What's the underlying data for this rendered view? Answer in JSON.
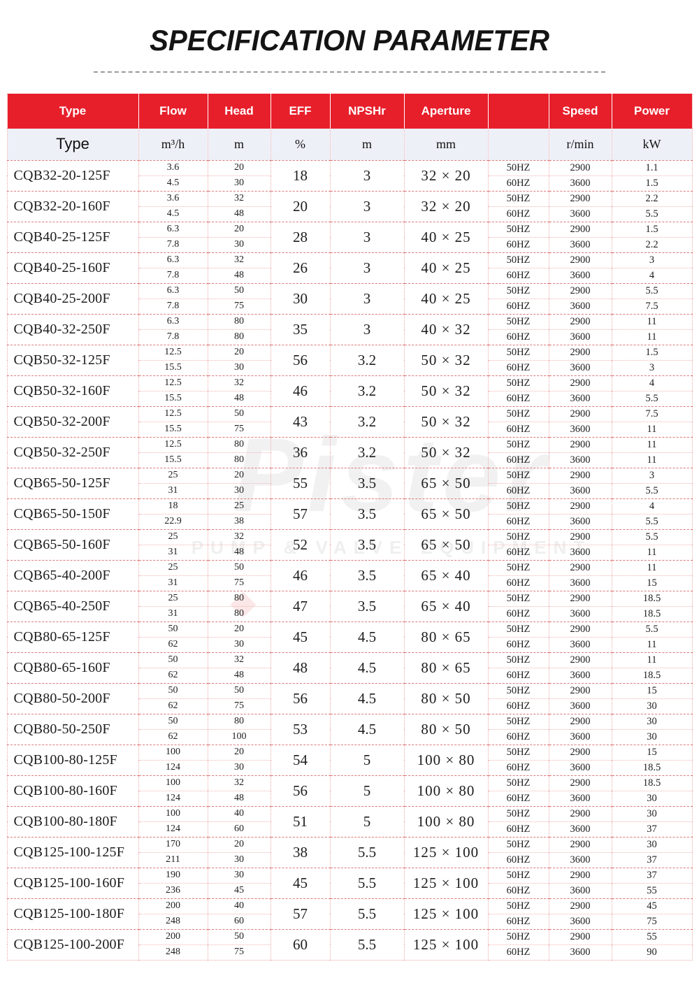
{
  "title": "SPECIFICATION PARAMETER",
  "watermark": {
    "brand": "Pister",
    "subtitle": "PUMP & VALVE EQUIPMENT"
  },
  "colors": {
    "header_red": "#e71f2b",
    "units_row_bg": "#eef0f8",
    "grid_strong": "#dd7a7a",
    "grid_light": "#efaaaa"
  },
  "table": {
    "header": {
      "type": "Type",
      "flow": "Flow",
      "head": "Head",
      "eff": "EFF",
      "npshr": "NPSHr",
      "aperture": "Aperture",
      "hz": "",
      "speed": "Speed",
      "power": "Power"
    },
    "units": {
      "type": "Type",
      "flow": "m³/h",
      "head": "m",
      "eff": "%",
      "npshr": "m",
      "aperture": "mm",
      "hz": "",
      "speed": "r/min",
      "power": "kW"
    },
    "hz_labels": [
      "50HZ",
      "60HZ"
    ],
    "speeds": [
      "2900",
      "3600"
    ],
    "rows": [
      {
        "type": "CQB32-20-125F",
        "flow": [
          "3.6",
          "4.5"
        ],
        "head": [
          "20",
          "30"
        ],
        "eff": "18",
        "npshr": "3",
        "aperture": "32 × 20",
        "power": [
          "1.1",
          "1.5"
        ]
      },
      {
        "type": "CQB32-20-160F",
        "flow": [
          "3.6",
          "4.5"
        ],
        "head": [
          "32",
          "48"
        ],
        "eff": "20",
        "npshr": "3",
        "aperture": "32 × 20",
        "power": [
          "2.2",
          "5.5"
        ]
      },
      {
        "type": "CQB40-25-125F",
        "flow": [
          "6.3",
          "7.8"
        ],
        "head": [
          "20",
          "30"
        ],
        "eff": "28",
        "npshr": "3",
        "aperture": "40 × 25",
        "power": [
          "1.5",
          "2.2"
        ]
      },
      {
        "type": "CQB40-25-160F",
        "flow": [
          "6.3",
          "7.8"
        ],
        "head": [
          "32",
          "48"
        ],
        "eff": "26",
        "npshr": "3",
        "aperture": "40 × 25",
        "power": [
          "3",
          "4"
        ]
      },
      {
        "type": "CQB40-25-200F",
        "flow": [
          "6.3",
          "7.8"
        ],
        "head": [
          "50",
          "75"
        ],
        "eff": "30",
        "npshr": "3",
        "aperture": "40 × 25",
        "power": [
          "5.5",
          "7.5"
        ]
      },
      {
        "type": "CQB40-32-250F",
        "flow": [
          "6.3",
          "7.8"
        ],
        "head": [
          "80",
          "80"
        ],
        "eff": "35",
        "npshr": "3",
        "aperture": "40 × 32",
        "power": [
          "11",
          "11"
        ]
      },
      {
        "type": "CQB50-32-125F",
        "flow": [
          "12.5",
          "15.5"
        ],
        "head": [
          "20",
          "30"
        ],
        "eff": "56",
        "npshr": "3.2",
        "aperture": "50 × 32",
        "power": [
          "1.5",
          "3"
        ]
      },
      {
        "type": "CQB50-32-160F",
        "flow": [
          "12.5",
          "15.5"
        ],
        "head": [
          "32",
          "48"
        ],
        "eff": "46",
        "npshr": "3.2",
        "aperture": "50 × 32",
        "power": [
          "4",
          "5.5"
        ]
      },
      {
        "type": "CQB50-32-200F",
        "flow": [
          "12.5",
          "15.5"
        ],
        "head": [
          "50",
          "75"
        ],
        "eff": "43",
        "npshr": "3.2",
        "aperture": "50 × 32",
        "power": [
          "7.5",
          "11"
        ]
      },
      {
        "type": "CQB50-32-250F",
        "flow": [
          "12.5",
          "15.5"
        ],
        "head": [
          "80",
          "80"
        ],
        "eff": "36",
        "npshr": "3.2",
        "aperture": "50 × 32",
        "power": [
          "11",
          "11"
        ]
      },
      {
        "type": "CQB65-50-125F",
        "flow": [
          "25",
          "31"
        ],
        "head": [
          "20",
          "30"
        ],
        "eff": "55",
        "npshr": "3.5",
        "aperture": "65 × 50",
        "power": [
          "3",
          "5.5"
        ]
      },
      {
        "type": "CQB65-50-150F",
        "flow": [
          "18",
          "22.9"
        ],
        "head": [
          "25",
          "38"
        ],
        "eff": "57",
        "npshr": "3.5",
        "aperture": "65 × 50",
        "power": [
          "4",
          "5.5"
        ]
      },
      {
        "type": "CQB65-50-160F",
        "flow": [
          "25",
          "31"
        ],
        "head": [
          "32",
          "48"
        ],
        "eff": "52",
        "npshr": "3.5",
        "aperture": "65 × 50",
        "power": [
          "5.5",
          "11"
        ]
      },
      {
        "type": "CQB65-40-200F",
        "flow": [
          "25",
          "31"
        ],
        "head": [
          "50",
          "75"
        ],
        "eff": "46",
        "npshr": "3.5",
        "aperture": "65 × 40",
        "power": [
          "11",
          "15"
        ]
      },
      {
        "type": "CQB65-40-250F",
        "flow": [
          "25",
          "31"
        ],
        "head": [
          "80",
          "80"
        ],
        "eff": "47",
        "npshr": "3.5",
        "aperture": "65 × 40",
        "power": [
          "18.5",
          "18.5"
        ]
      },
      {
        "type": "CQB80-65-125F",
        "flow": [
          "50",
          "62"
        ],
        "head": [
          "20",
          "30"
        ],
        "eff": "45",
        "npshr": "4.5",
        "aperture": "80 × 65",
        "power": [
          "5.5",
          "11"
        ]
      },
      {
        "type": "CQB80-65-160F",
        "flow": [
          "50",
          "62"
        ],
        "head": [
          "32",
          "48"
        ],
        "eff": "48",
        "npshr": "4.5",
        "aperture": "80 × 65",
        "power": [
          "11",
          "18.5"
        ]
      },
      {
        "type": "CQB80-50-200F",
        "flow": [
          "50",
          "62"
        ],
        "head": [
          "50",
          "75"
        ],
        "eff": "56",
        "npshr": "4.5",
        "aperture": "80 × 50",
        "power": [
          "15",
          "30"
        ]
      },
      {
        "type": "CQB80-50-250F",
        "flow": [
          "50",
          "62"
        ],
        "head": [
          "80",
          "100"
        ],
        "eff": "53",
        "npshr": "4.5",
        "aperture": "80 × 50",
        "power": [
          "30",
          "30"
        ]
      },
      {
        "type": "CQB100-80-125F",
        "flow": [
          "100",
          "124"
        ],
        "head": [
          "20",
          "30"
        ],
        "eff": "54",
        "npshr": "5",
        "aperture": "100 × 80",
        "power": [
          "15",
          "18.5"
        ]
      },
      {
        "type": "CQB100-80-160F",
        "flow": [
          "100",
          "124"
        ],
        "head": [
          "32",
          "48"
        ],
        "eff": "56",
        "npshr": "5",
        "aperture": "100 × 80",
        "power": [
          "18.5",
          "30"
        ]
      },
      {
        "type": "CQB100-80-180F",
        "flow": [
          "100",
          "124"
        ],
        "head": [
          "40",
          "60"
        ],
        "eff": "51",
        "npshr": "5",
        "aperture": "100 × 80",
        "power": [
          "30",
          "37"
        ]
      },
      {
        "type": "CQB125-100-125F",
        "flow": [
          "170",
          "211"
        ],
        "head": [
          "20",
          "30"
        ],
        "eff": "38",
        "npshr": "5.5",
        "aperture": "125 × 100",
        "power": [
          "30",
          "37"
        ]
      },
      {
        "type": "CQB125-100-160F",
        "flow": [
          "190",
          "236"
        ],
        "head": [
          "30",
          "45"
        ],
        "eff": "45",
        "npshr": "5.5",
        "aperture": "125 × 100",
        "power": [
          "37",
          "55"
        ]
      },
      {
        "type": "CQB125-100-180F",
        "flow": [
          "200",
          "248"
        ],
        "head": [
          "40",
          "60"
        ],
        "eff": "57",
        "npshr": "5.5",
        "aperture": "125 × 100",
        "power": [
          "45",
          "75"
        ]
      },
      {
        "type": "CQB125-100-200F",
        "flow": [
          "200",
          "248"
        ],
        "head": [
          "50",
          "75"
        ],
        "eff": "60",
        "npshr": "5.5",
        "aperture": "125 × 100",
        "power": [
          "55",
          "90"
        ]
      }
    ]
  }
}
